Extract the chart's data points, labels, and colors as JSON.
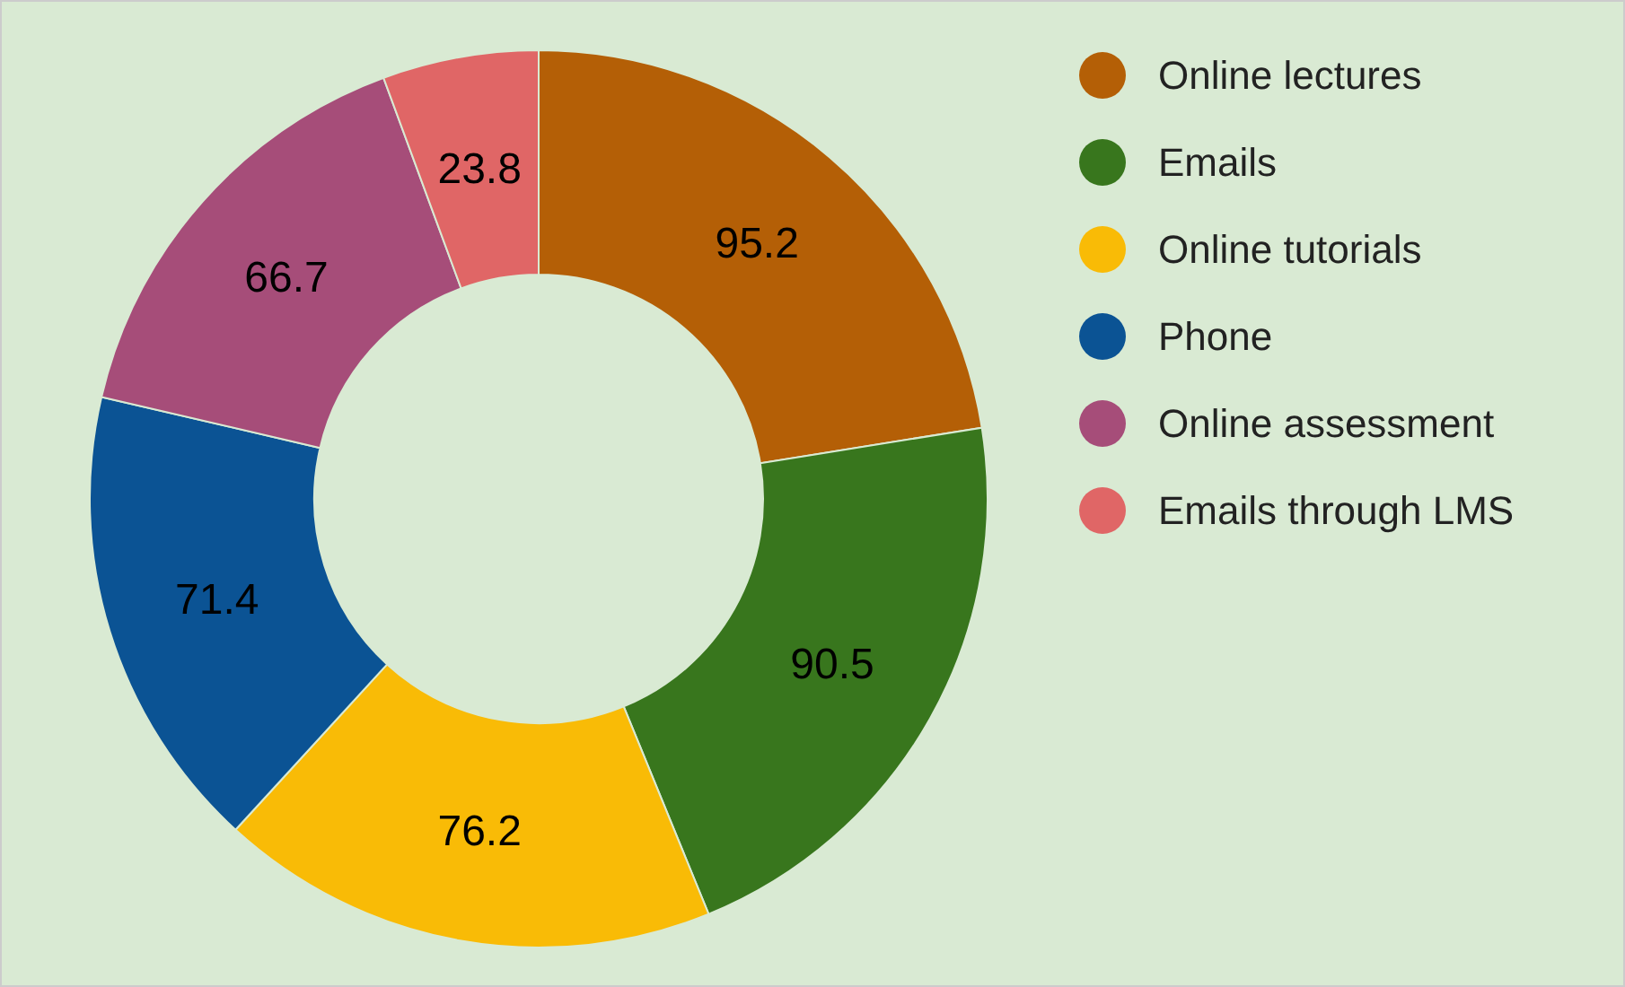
{
  "chart_data": {
    "type": "donut",
    "categories": [
      "Online lectures",
      "Emails",
      "Online tutorials",
      "Phone",
      "Online assessment",
      "Emails through LMS"
    ],
    "values": [
      95.2,
      90.5,
      76.2,
      71.4,
      66.7,
      23.8
    ],
    "colors": [
      "#b45f06",
      "#38761d",
      "#f9bb06",
      "#0b5394",
      "#a64d79",
      "#e06666"
    ],
    "data_labels": true,
    "legend": "top right"
  }
}
